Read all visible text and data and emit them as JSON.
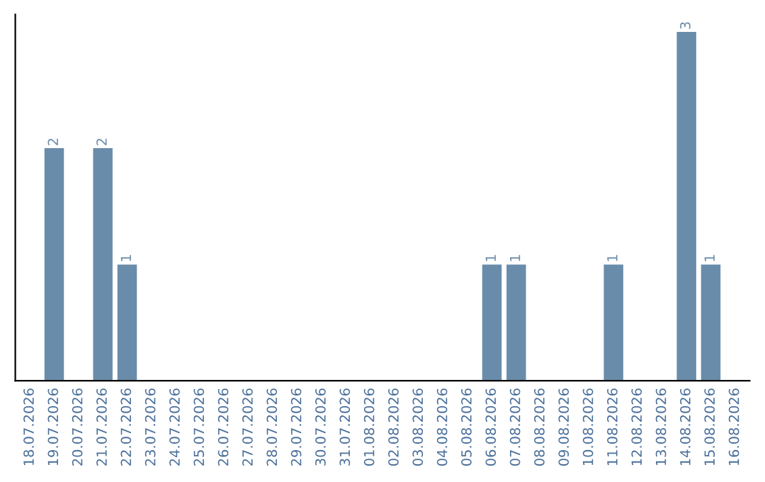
{
  "chart_data": {
    "type": "bar",
    "categories": [
      "18.07.2026",
      "19.07.2026",
      "20.07.2026",
      "21.07.2026",
      "22.07.2026",
      "23.07.2026",
      "24.07.2026",
      "25.07.2026",
      "26.07.2026",
      "27.07.2026",
      "28.07.2026",
      "29.07.2026",
      "30.07.2026",
      "31.07.2026",
      "01.08.2026",
      "02.08.2026",
      "03.08.2026",
      "04.08.2026",
      "05.08.2026",
      "06.08.2026",
      "07.08.2026",
      "08.08.2026",
      "09.08.2026",
      "10.08.2026",
      "11.08.2026",
      "12.08.2026",
      "13.08.2026",
      "14.08.2026",
      "15.08.2026",
      "16.08.2026"
    ],
    "values": [
      0,
      2,
      0,
      2,
      1,
      0,
      0,
      0,
      0,
      0,
      0,
      0,
      0,
      0,
      0,
      0,
      0,
      0,
      0,
      1,
      1,
      0,
      0,
      0,
      1,
      0,
      0,
      3,
      1,
      0
    ],
    "value_labels": [
      null,
      "2",
      null,
      "2",
      "1",
      null,
      null,
      null,
      null,
      null,
      null,
      null,
      null,
      null,
      null,
      null,
      null,
      null,
      null,
      "1",
      "1",
      null,
      null,
      null,
      "1",
      null,
      null,
      "3",
      "1",
      null
    ],
    "color": "#6a8cab",
    "tick_labels": "x",
    "grid": false,
    "legend": false
  }
}
